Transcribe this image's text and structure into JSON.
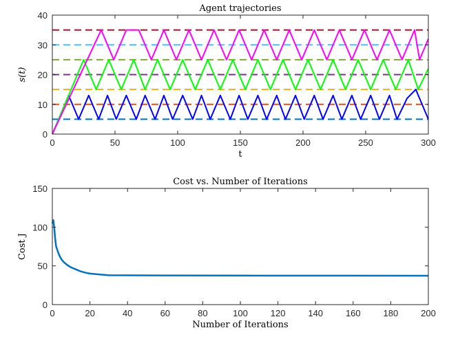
{
  "chart_data": [
    {
      "type": "line",
      "title": "Agent trajectories",
      "xlabel": "t",
      "ylabel": "s(t)",
      "xlim": [
        0,
        300
      ],
      "ylim": [
        0,
        40
      ],
      "xticks": [
        0,
        50,
        100,
        150,
        200,
        250,
        300
      ],
      "yticks": [
        0,
        10,
        20,
        30,
        40
      ],
      "grid": false,
      "reference_lines": [
        {
          "y": 5,
          "color": "#0072BD"
        },
        {
          "y": 10,
          "color": "#D95319"
        },
        {
          "y": 15,
          "color": "#EDB120"
        },
        {
          "y": 20,
          "color": "#7E2F8E"
        },
        {
          "y": 25,
          "color": "#77AC30"
        },
        {
          "y": 30,
          "color": "#4DBEEE"
        },
        {
          "y": 35,
          "color": "#A2142F"
        }
      ],
      "series": [
        {
          "color": "#0000FF",
          "points": [
            [
              0,
              0
            ],
            [
              13,
              13
            ],
            [
              21,
              5
            ],
            [
              29,
              13
            ],
            [
              37,
              5
            ],
            [
              44,
              13
            ],
            [
              51,
              5
            ],
            [
              59,
              13
            ],
            [
              67,
              5
            ],
            [
              74,
              13
            ],
            [
              82,
              5
            ],
            [
              89,
              13
            ],
            [
              96,
              5
            ],
            [
              104,
              13
            ],
            [
              112,
              5
            ],
            [
              119,
              13
            ],
            [
              126,
              5
            ],
            [
              134,
              13
            ],
            [
              142,
              5
            ],
            [
              149,
              13
            ],
            [
              156,
              5
            ],
            [
              164,
              13
            ],
            [
              171,
              5
            ],
            [
              179,
              13
            ],
            [
              186,
              5
            ],
            [
              194,
              13
            ],
            [
              201,
              5
            ],
            [
              209,
              13
            ],
            [
              216,
              5
            ],
            [
              224,
              13
            ],
            [
              231,
              5
            ],
            [
              239,
              13
            ],
            [
              246,
              5
            ],
            [
              254,
              13
            ],
            [
              261,
              5
            ],
            [
              269,
              13
            ],
            [
              275,
              5
            ],
            [
              283,
              12
            ],
            [
              290,
              15
            ],
            [
              300,
              5
            ]
          ]
        },
        {
          "color": "#00FF00",
          "points": [
            [
              0,
              0
            ],
            [
              25,
              25
            ],
            [
              35,
              15
            ],
            [
              45,
              25
            ],
            [
              55,
              15
            ],
            [
              65,
              25
            ],
            [
              74,
              15
            ],
            [
              84,
              25
            ],
            [
              94,
              15
            ],
            [
              104,
              25
            ],
            [
              114,
              15
            ],
            [
              124,
              25
            ],
            [
              134,
              15
            ],
            [
              144,
              25
            ],
            [
              154,
              15
            ],
            [
              164,
              25
            ],
            [
              174,
              15
            ],
            [
              184,
              25
            ],
            [
              194,
              15
            ],
            [
              204,
              25
            ],
            [
              214,
              15
            ],
            [
              224,
              25
            ],
            [
              234,
              15
            ],
            [
              244,
              25
            ],
            [
              254,
              15
            ],
            [
              264,
              25
            ],
            [
              274,
              15
            ],
            [
              284,
              25
            ],
            [
              292,
              15
            ],
            [
              300,
              22
            ]
          ]
        },
        {
          "color": "#FF00FF",
          "points": [
            [
              0,
              0
            ],
            [
              39,
              35
            ],
            [
              49,
              25
            ],
            [
              59,
              35
            ],
            [
              69,
              35
            ],
            [
              79,
              25
            ],
            [
              89,
              35
            ],
            [
              99,
              25
            ],
            [
              109,
              35
            ],
            [
              119,
              25
            ],
            [
              129,
              35
            ],
            [
              139,
              25
            ],
            [
              149,
              35
            ],
            [
              159,
              25
            ],
            [
              169,
              35
            ],
            [
              179,
              25
            ],
            [
              189,
              35
            ],
            [
              199,
              25
            ],
            [
              209,
              35
            ],
            [
              219,
              25
            ],
            [
              229,
              35
            ],
            [
              239,
              25
            ],
            [
              249,
              35
            ],
            [
              259,
              25
            ],
            [
              269,
              35
            ],
            [
              279,
              25
            ],
            [
              289,
              35
            ],
            [
              293,
              25
            ],
            [
              300,
              32
            ]
          ]
        }
      ]
    },
    {
      "type": "line",
      "title": "Cost vs. Number of Iterations",
      "xlabel": "Number of Iterations",
      "ylabel": "Cost J",
      "xlim": [
        0,
        200
      ],
      "ylim": [
        0,
        150
      ],
      "xticks": [
        0,
        20,
        40,
        60,
        80,
        100,
        120,
        140,
        160,
        180,
        200
      ],
      "yticks": [
        0,
        50,
        100,
        150
      ],
      "grid": false,
      "series": [
        {
          "color": "#0072BD",
          "x": [
            0,
            0.5,
            1,
            1.5,
            2,
            3,
            4,
            5,
            6,
            8,
            10,
            12,
            15,
            18,
            20,
            25,
            30,
            40,
            60,
            100,
            150,
            200
          ],
          "y": [
            105,
            109,
            100,
            85,
            75,
            68,
            62,
            58,
            55,
            51,
            48,
            46,
            43,
            41,
            40,
            39,
            38,
            37.8,
            37.6,
            37.5,
            37.4,
            37.3
          ]
        }
      ]
    }
  ]
}
